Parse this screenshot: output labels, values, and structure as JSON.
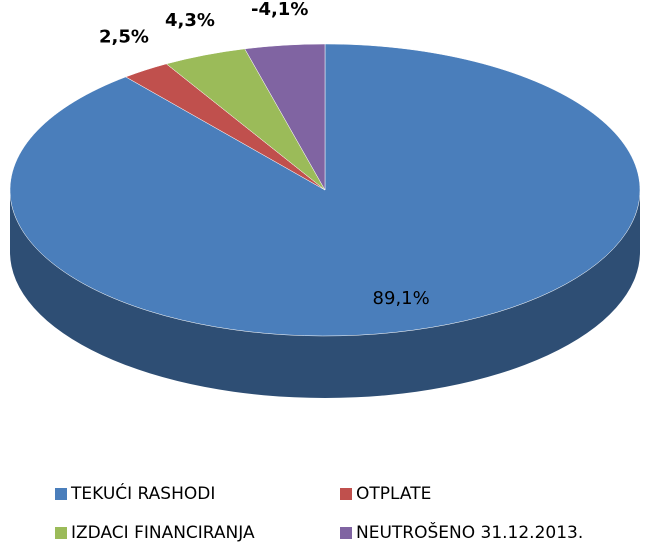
{
  "chart_data": {
    "type": "pie3d",
    "categories": [
      "TEKUĆI RASHODI",
      "OTPLATE",
      "IZDACI FINANCIRANJA",
      "NEUTROŠENO 31.12.2013."
    ],
    "values": [
      89.1,
      2.5,
      4.3,
      -4.1
    ],
    "value_labels": [
      "89,1%",
      "2,5%",
      "4,3%",
      "-4,1%"
    ],
    "colors": [
      "#4a7ebb",
      "#c0504d",
      "#9bbb59",
      "#8064a2"
    ],
    "legend": "bottom"
  }
}
